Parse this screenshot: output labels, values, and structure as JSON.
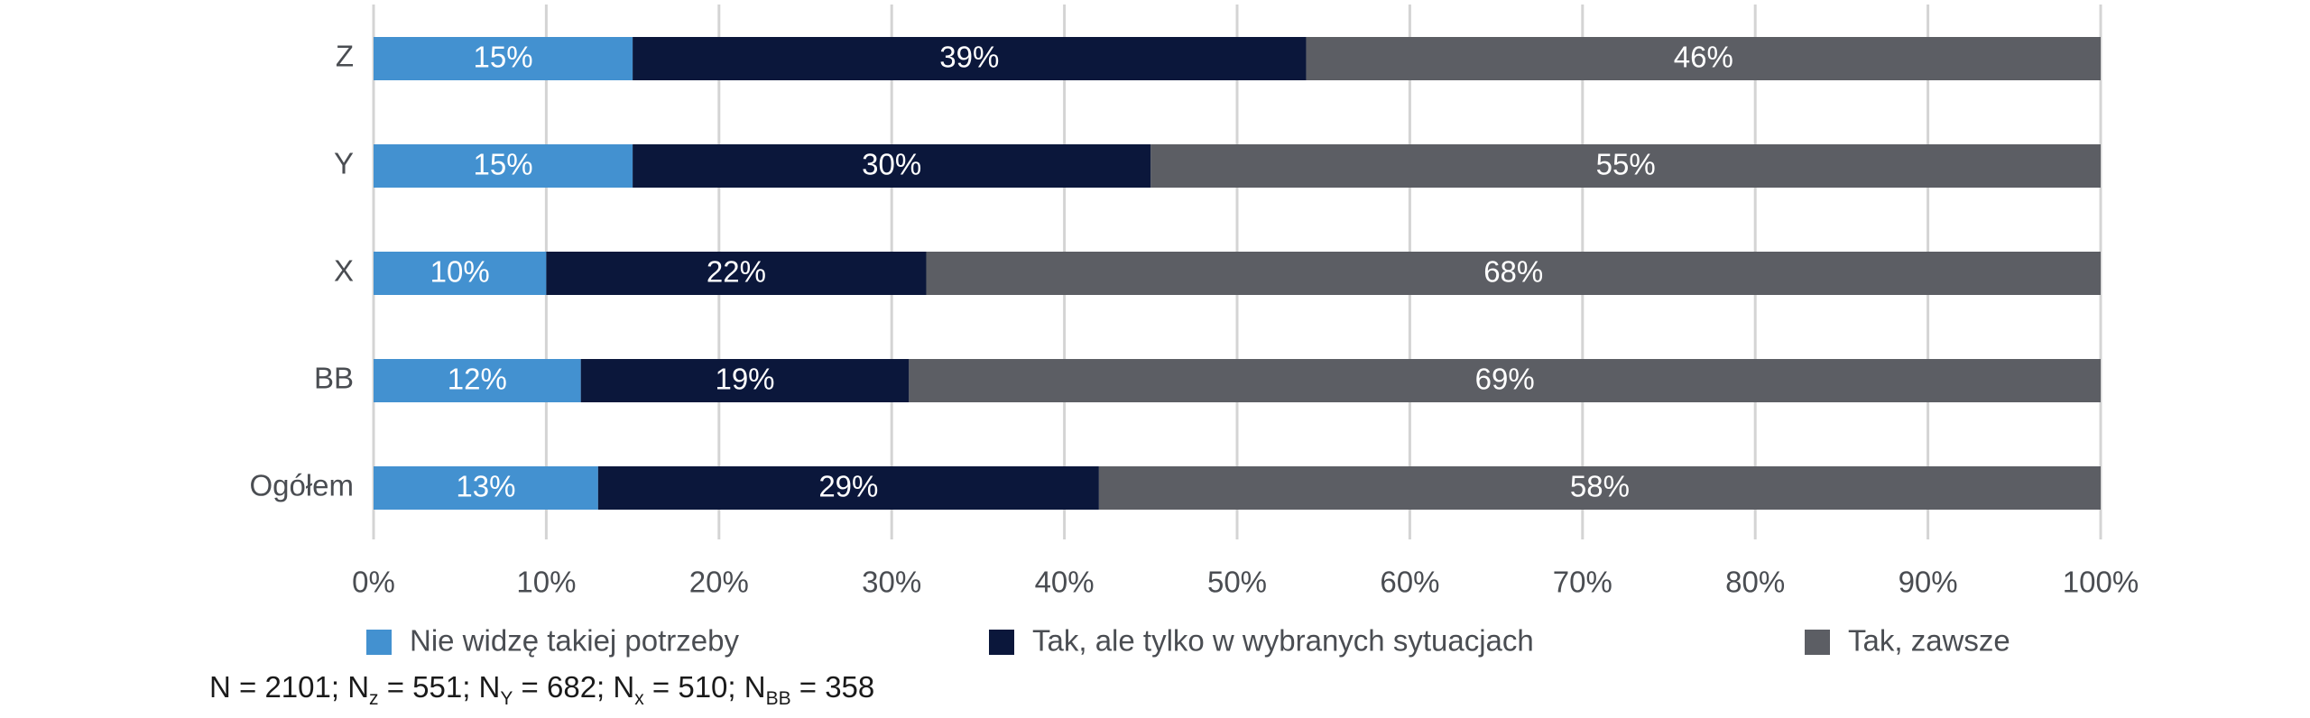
{
  "chart_data": {
    "type": "bar",
    "orientation": "horizontal",
    "stacked": true,
    "categories": [
      "Z",
      "Y",
      "X",
      "BB",
      "Ogółem"
    ],
    "series": [
      {
        "name": "Nie widzę takiej potrzeby",
        "color": "#4391d0",
        "values": [
          15,
          15,
          10,
          12,
          13
        ]
      },
      {
        "name": "Tak, ale tylko w wybranych sytuacjach",
        "color": "#0b173b",
        "values": [
          39,
          30,
          22,
          19,
          29
        ]
      },
      {
        "name": "Tak, zawsze",
        "color": "#5c5e64",
        "values": [
          46,
          55,
          68,
          69,
          58
        ]
      }
    ],
    "value_suffix": "%",
    "xlim": [
      0,
      100
    ],
    "xticks": [
      0,
      10,
      20,
      30,
      40,
      50,
      60,
      70,
      80,
      90,
      100
    ],
    "xtick_labels": [
      "0%",
      "10%",
      "20%",
      "30%",
      "40%",
      "50%",
      "60%",
      "70%",
      "80%",
      "90%",
      "100%"
    ],
    "grid": true,
    "legend_position": "bottom"
  },
  "note": {
    "parts": [
      {
        "text": "N = 2101; N"
      },
      {
        "text": "z",
        "sub": true
      },
      {
        "text": " = 551; N"
      },
      {
        "text": "Y",
        "sub": true
      },
      {
        "text": " = 682; N"
      },
      {
        "text": "x",
        "sub": true
      },
      {
        "text": " = 510; N"
      },
      {
        "text": "BB",
        "sub": true
      },
      {
        "text": " = 358"
      }
    ]
  }
}
